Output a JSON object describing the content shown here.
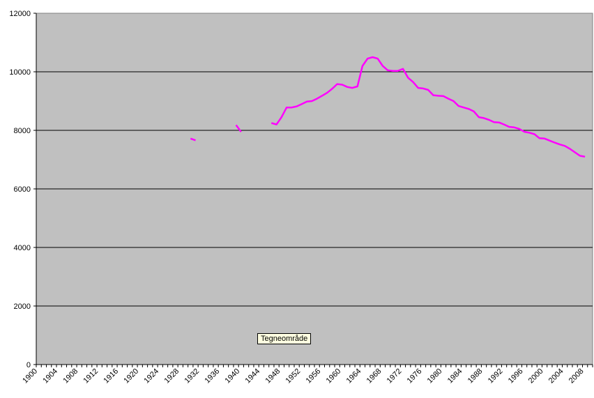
{
  "chart_data": {
    "type": "line",
    "categories": [
      "1900",
      null,
      null,
      null,
      "1904",
      null,
      null,
      null,
      "1908",
      null,
      null,
      null,
      "1912",
      null,
      null,
      null,
      "1916",
      null,
      null,
      null,
      "1920",
      null,
      null,
      null,
      "1924",
      null,
      null,
      null,
      "1928",
      null,
      null,
      null,
      "1932",
      null,
      null,
      null,
      "1936",
      null,
      null,
      null,
      "1940",
      null,
      null,
      null,
      "1944",
      null,
      null,
      null,
      "1948",
      null,
      null,
      null,
      "1952",
      null,
      null,
      null,
      "1956",
      null,
      null,
      null,
      "1960",
      null,
      null,
      null,
      "1964",
      null,
      null,
      null,
      "1968",
      null,
      null,
      null,
      "1972",
      null,
      null,
      null,
      "1976",
      null,
      null,
      null,
      "1980",
      null,
      null,
      null,
      "1984",
      null,
      null,
      null,
      "1988",
      null,
      null,
      null,
      "1992",
      null,
      null,
      null,
      "1996",
      null,
      null,
      null,
      "2000",
      null,
      null,
      null,
      "2004",
      null,
      null,
      null,
      "2008",
      null
    ],
    "series": [
      {
        "color": "#ff00ff",
        "values": [
          null,
          null,
          null,
          null,
          null,
          null,
          null,
          null,
          null,
          null,
          null,
          null,
          null,
          null,
          null,
          null,
          null,
          null,
          null,
          null,
          null,
          null,
          null,
          null,
          null,
          null,
          null,
          null,
          null,
          null,
          7720,
          7660,
          null,
          null,
          null,
          null,
          null,
          null,
          null,
          8180,
          7950,
          null,
          null,
          null,
          null,
          null,
          8250,
          8200,
          8450,
          8780,
          8780,
          8820,
          8900,
          8980,
          9000,
          9080,
          9180,
          9280,
          9420,
          9580,
          9560,
          9480,
          9450,
          9500,
          10200,
          10450,
          10500,
          10450,
          10200,
          10050,
          10030,
          10030,
          10100,
          9800,
          9650,
          9450,
          9430,
          9380,
          9200,
          9180,
          9170,
          9080,
          9000,
          8830,
          8780,
          8730,
          8650,
          8450,
          8420,
          8360,
          8280,
          8270,
          8200,
          8120,
          8100,
          8050,
          7950,
          7920,
          7870,
          7730,
          7720,
          7650,
          7580,
          7520,
          7470,
          7370,
          7250,
          7130,
          7100,
          null
        ]
      }
    ],
    "ylim": [
      0,
      12000
    ],
    "yticks": [
      0,
      2000,
      4000,
      6000,
      8000,
      10000,
      12000
    ],
    "grid": true,
    "annotation": "Tegneområde"
  }
}
